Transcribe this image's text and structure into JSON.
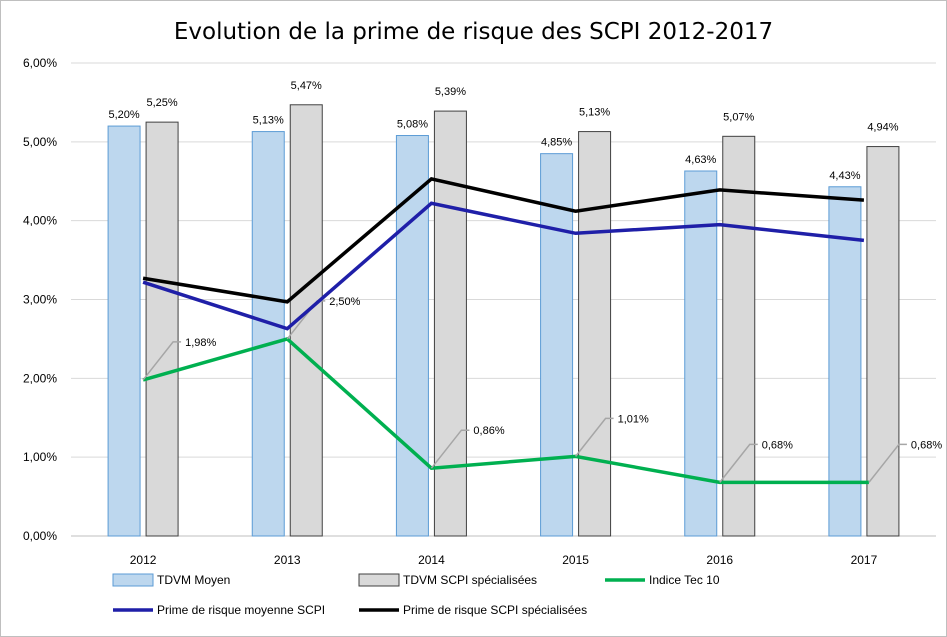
{
  "chart_data": {
    "type": "bar",
    "title": "Evolution  de la prime de risque des SCPI 2012-2017",
    "categories": [
      "2012",
      "2013",
      "2014",
      "2015",
      "2016",
      "2017"
    ],
    "y_ticks": [
      "0,00%",
      "1,00%",
      "2,00%",
      "3,00%",
      "4,00%",
      "5,00%",
      "6,00%"
    ],
    "ylim": [
      0,
      6
    ],
    "grid": true,
    "legend_position": "bottom",
    "bar_series": [
      {
        "name": "TDVM Moyen",
        "values": [
          5.2,
          5.13,
          5.08,
          4.85,
          4.63,
          4.43
        ],
        "labels": [
          "5,20%",
          "5,13%",
          "5,08%",
          "4,85%",
          "4,63%",
          "4,43%"
        ],
        "fill": "#bdd7ee",
        "stroke": "#5b9bd5"
      },
      {
        "name": "TDVM SCPI spécialisées",
        "values": [
          5.25,
          5.47,
          5.39,
          5.13,
          5.07,
          4.94
        ],
        "labels": [
          "5,25%",
          "5,47%",
          "5,39%",
          "5,13%",
          "5,07%",
          "4,94%"
        ],
        "fill": "#d9d9d9",
        "stroke": "#404040"
      }
    ],
    "line_series": [
      {
        "name": "Indice Tec 10",
        "values": [
          1.98,
          2.5,
          0.86,
          1.01,
          0.68,
          0.68
        ],
        "labels": [
          "1,98%",
          "2,50%",
          "0,86%",
          "1,01%",
          "0,68%",
          "0,68%"
        ],
        "color": "#00b050"
      },
      {
        "name": "Prime de risque moyenne SCPI",
        "values": [
          3.22,
          2.63,
          4.22,
          3.84,
          3.95,
          3.75
        ],
        "color": "#1f1fa8"
      },
      {
        "name": "Prime de risque SCPI spécialisées",
        "values": [
          3.27,
          2.97,
          4.53,
          4.12,
          4.39,
          4.26
        ],
        "color": "#000000"
      }
    ]
  }
}
